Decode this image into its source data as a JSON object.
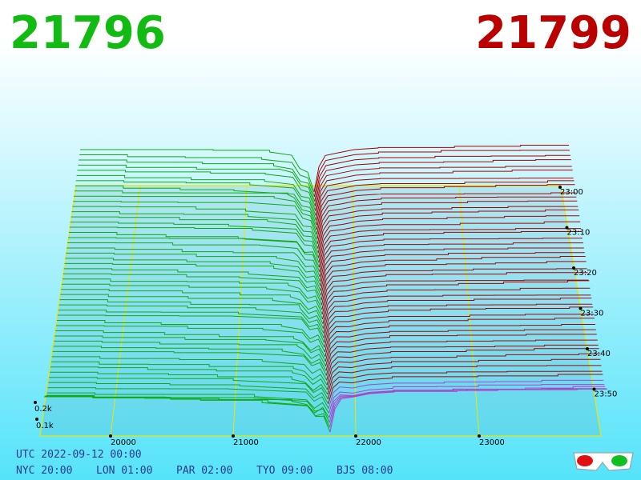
{
  "bid": "21796",
  "ask": "21799",
  "price_labels": [
    "20000",
    "21000",
    "22000",
    "23000"
  ],
  "time_labels": [
    "23:00",
    "23:10",
    "23:20",
    "23:30",
    "23:40",
    "23:50"
  ],
  "volume_labels": [
    "0.2k",
    "0.1k"
  ],
  "footer": {
    "utc": "UTC 2022-09-12 00:00",
    "zones": [
      "NYC 20:00",
      "LON 01:00",
      "PAR 02:00",
      "TYO 09:00",
      "BJS 08:00"
    ]
  }
}
